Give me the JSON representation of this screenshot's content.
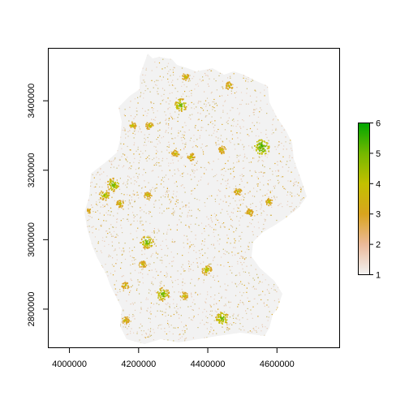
{
  "chart_data": {
    "type": "raster-map",
    "title": "",
    "xlabel": "",
    "ylabel": "",
    "xlim": [
      3940000,
      4780000
    ],
    "ylim": [
      2690000,
      3550000
    ],
    "x_ticks": [
      {
        "value": 4000000,
        "label": "4000000"
      },
      {
        "value": 4200000,
        "label": "4200000"
      },
      {
        "value": 4400000,
        "label": "4400000"
      },
      {
        "value": 4600000,
        "label": "4600000"
      }
    ],
    "y_ticks": [
      {
        "value": 2800000,
        "label": "2800000"
      },
      {
        "value": 3000000,
        "label": "3000000"
      },
      {
        "value": 3200000,
        "label": "3200000"
      },
      {
        "value": 3400000,
        "label": "3400000"
      }
    ],
    "legend": {
      "placement": "right",
      "min": 1,
      "max": 6,
      "ticks": [
        {
          "value": 1,
          "label": "1"
        },
        {
          "value": 2,
          "label": "2"
        },
        {
          "value": 3,
          "label": "3"
        },
        {
          "value": 4,
          "label": "4"
        },
        {
          "value": 5,
          "label": "5"
        },
        {
          "value": 6,
          "label": "6"
        }
      ],
      "colors": [
        "#F2F2F2",
        "#EBB999",
        "#D9A41E",
        "#C3C000",
        "#74B800",
        "#00A600"
      ]
    },
    "hotspots": [
      {
        "x": 4320000,
        "y": 3390000,
        "level": 5.5
      },
      {
        "x": 4555000,
        "y": 3270000,
        "level": 6
      },
      {
        "x": 4125000,
        "y": 3160000,
        "level": 5.5
      },
      {
        "x": 4100000,
        "y": 3130000,
        "level": 5
      },
      {
        "x": 4145000,
        "y": 3105000,
        "level": 4.5
      },
      {
        "x": 4222000,
        "y": 2995000,
        "level": 5.5
      },
      {
        "x": 4268000,
        "y": 2845000,
        "level": 5.5
      },
      {
        "x": 4440000,
        "y": 2775000,
        "level": 5.5
      },
      {
        "x": 4395000,
        "y": 2915000,
        "level": 5
      },
      {
        "x": 4575000,
        "y": 3110000,
        "level": 4.5
      },
      {
        "x": 4210000,
        "y": 2930000,
        "level": 4.5
      },
      {
        "x": 4305000,
        "y": 3250000,
        "level": 4.5
      },
      {
        "x": 4485000,
        "y": 3140000,
        "level": 4.5
      },
      {
        "x": 4225000,
        "y": 3130000,
        "level": 4.5
      },
      {
        "x": 4440000,
        "y": 3260000,
        "level": 4.5
      },
      {
        "x": 4180000,
        "y": 3330000,
        "level": 4.5
      },
      {
        "x": 4230000,
        "y": 3330000,
        "level": 4.5
      },
      {
        "x": 4460000,
        "y": 3445000,
        "level": 4.5
      },
      {
        "x": 4335000,
        "y": 3470000,
        "level": 4.5
      },
      {
        "x": 4350000,
        "y": 3240000,
        "level": 4.5
      },
      {
        "x": 4520000,
        "y": 3080000,
        "level": 4.5
      },
      {
        "x": 4055000,
        "y": 3085000,
        "level": 4
      },
      {
        "x": 4160000,
        "y": 2870000,
        "level": 4.5
      },
      {
        "x": 4330000,
        "y": 2840000,
        "level": 4.5
      },
      {
        "x": 4160000,
        "y": 2770000,
        "level": 4.5
      }
    ]
  }
}
